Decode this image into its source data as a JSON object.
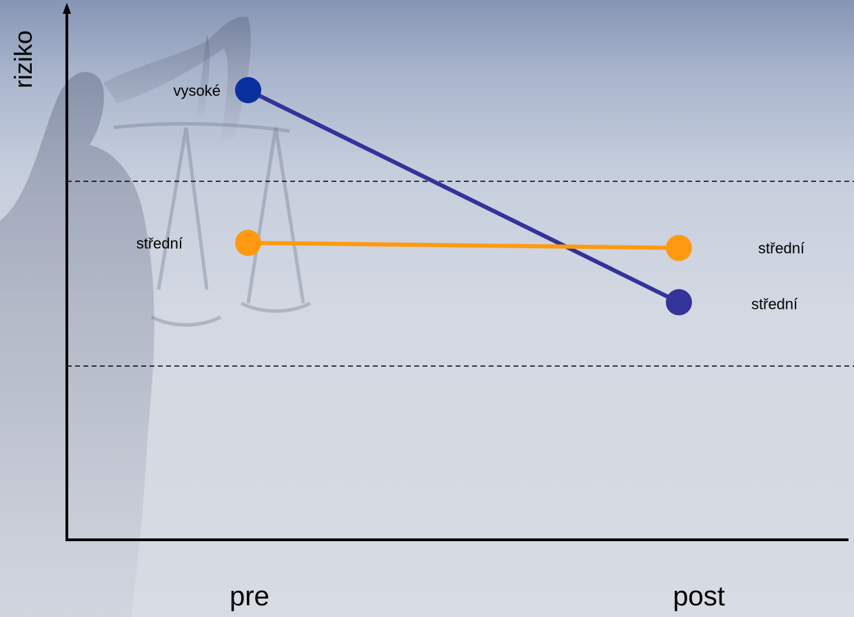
{
  "chart_data": {
    "type": "line",
    "categories": [
      "pre",
      "post"
    ],
    "y_label": "riziko",
    "level_note": "ordinal risk levels: 0 = below lower band, 1 = střední band, 2 = vysoké band",
    "ylim": [
      -0.5,
      2.6
    ],
    "band_boundaries": [
      0.6,
      1.6
    ],
    "series": [
      {
        "color": "#33339a",
        "marker_colors": [
          "#0a2f9e",
          "#33339a"
        ],
        "values": [
          2.15,
          0.9
        ],
        "point_labels": [
          "vysoké",
          "střední"
        ]
      },
      {
        "color": "#ff9a10",
        "values": [
          1.25,
          1.22
        ],
        "point_labels": [
          "střední",
          "střední"
        ]
      }
    ],
    "background": "faded silhouette of a statue of Justice holding scales"
  }
}
